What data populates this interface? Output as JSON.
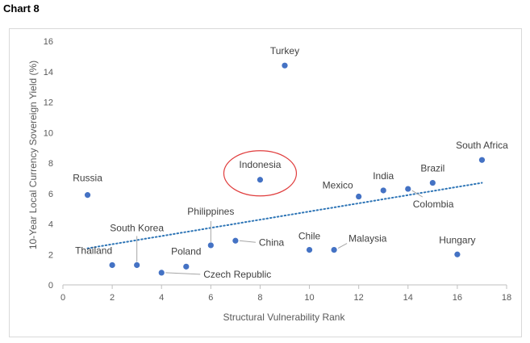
{
  "page_label": "Chart 8",
  "chart_data": {
    "type": "scatter",
    "title": "",
    "xlabel": "Structural Vulnerability Rank",
    "ylabel": "10-Year Local Currency Sovereign Yield (%)",
    "xlim": [
      0,
      18
    ],
    "ylim": [
      0,
      16
    ],
    "xticks": [
      0,
      2,
      4,
      6,
      8,
      10,
      12,
      14,
      16,
      18
    ],
    "yticks": [
      0,
      2,
      4,
      6,
      8,
      10,
      12,
      14,
      16
    ],
    "grid": false,
    "legend": "none",
    "marker_color": "#4472c4",
    "trendline": {
      "type": "linear",
      "style": "dotted",
      "color": "#2e75b6",
      "x": [
        1,
        17
      ],
      "y": [
        2.4,
        6.7
      ]
    },
    "highlight": {
      "label": "Indonesia",
      "shape": "ellipse",
      "color": "#e03c3c"
    },
    "points": [
      {
        "label": "Russia",
        "x": 1,
        "y": 5.9
      },
      {
        "label": "Thailand",
        "x": 2,
        "y": 1.3
      },
      {
        "label": "South Korea",
        "x": 3,
        "y": 1.3
      },
      {
        "label": "Czech Republic",
        "x": 4,
        "y": 0.8
      },
      {
        "label": "Poland",
        "x": 5,
        "y": 1.2
      },
      {
        "label": "Philippines",
        "x": 6,
        "y": 2.6
      },
      {
        "label": "China",
        "x": 7,
        "y": 2.9
      },
      {
        "label": "Indonesia",
        "x": 8,
        "y": 6.9
      },
      {
        "label": "Turkey",
        "x": 9,
        "y": 14.4
      },
      {
        "label": "Chile",
        "x": 10,
        "y": 2.3
      },
      {
        "label": "Malaysia",
        "x": 11,
        "y": 2.3
      },
      {
        "label": "Mexico",
        "x": 12,
        "y": 5.8
      },
      {
        "label": "India",
        "x": 13,
        "y": 6.2
      },
      {
        "label": "Colombia",
        "x": 14,
        "y": 6.3
      },
      {
        "label": "Brazil",
        "x": 15,
        "y": 6.7
      },
      {
        "label": "Hungary",
        "x": 16,
        "y": 2.0
      },
      {
        "label": "South Africa",
        "x": 17,
        "y": 8.2
      }
    ]
  }
}
